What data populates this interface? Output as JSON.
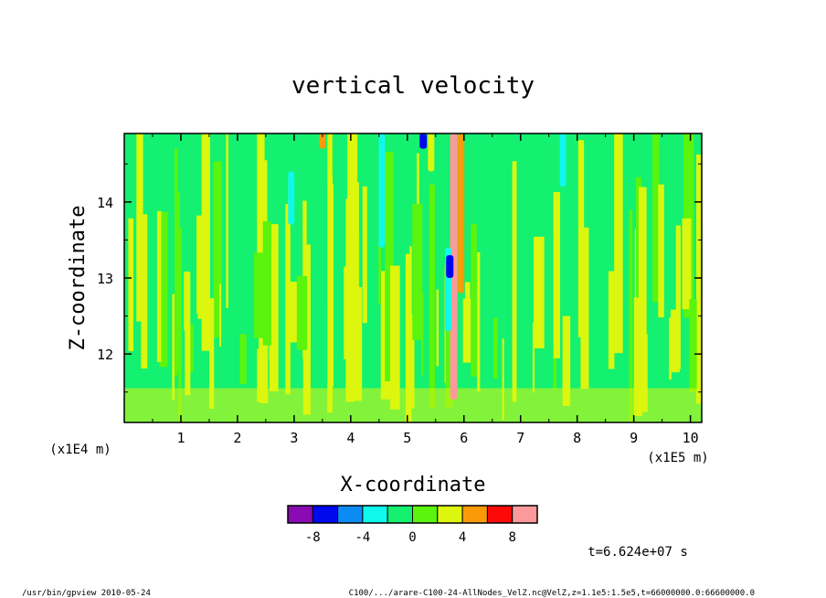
{
  "chart_data": {
    "type": "heatmap",
    "title": "vertical velocity",
    "xlabel": "X-coordinate",
    "ylabel": "Z-coordinate",
    "x_unit": "(x1E5 m)",
    "y_unit": "(x1E4 m)",
    "xlim": [
      0.0,
      10.2
    ],
    "ylim": [
      11.1,
      14.9
    ],
    "x_ticks": [
      "1",
      "2",
      "3",
      "4",
      "5",
      "6",
      "7",
      "8",
      "9",
      "10"
    ],
    "y_ticks": [
      "12",
      "13",
      "14"
    ],
    "colorbar": {
      "bounds": [
        -10,
        -8,
        -6,
        -4,
        -2,
        0,
        2,
        4,
        6,
        8,
        10
      ],
      "colors": [
        "#8a0ab3",
        "#0008ee",
        "#0b8cf2",
        "#10f8ec",
        "#14f070",
        "#5af40e",
        "#dcf60e",
        "#fa9a08",
        "#fc0a08",
        "#fb9a9a"
      ],
      "tick_labels": [
        "-8",
        "-4",
        "0",
        "4",
        "8"
      ],
      "tick_values": [
        -8,
        -4,
        0,
        4,
        8
      ]
    },
    "features": [
      {
        "x": 5.82,
        "zmin": 11.4,
        "zmax": 14.9,
        "value": 9
      },
      {
        "x": 5.95,
        "zmin": 12.8,
        "zmax": 14.9,
        "value": 5
      },
      {
        "x": 5.72,
        "zmin": 12.3,
        "zmax": 13.4,
        "value": -4
      },
      {
        "x": 5.75,
        "zmin": 13.0,
        "zmax": 13.3,
        "value": -7
      },
      {
        "x": 5.42,
        "zmin": 14.4,
        "zmax": 14.9,
        "value": 3
      },
      {
        "x": 5.28,
        "zmin": 14.7,
        "zmax": 14.9,
        "value": -8
      },
      {
        "x": 4.55,
        "zmin": 13.4,
        "zmax": 14.9,
        "value": -3
      },
      {
        "x": 2.95,
        "zmin": 13.7,
        "zmax": 14.4,
        "value": -3
      },
      {
        "x": 7.75,
        "zmin": 14.2,
        "zmax": 14.9,
        "value": -3
      },
      {
        "x": 3.5,
        "zmin": 14.7,
        "zmax": 14.9,
        "value": 4
      }
    ],
    "time_label": "t=6.624e+07 s"
  },
  "footer": {
    "left": "/usr/bin/gpview  2010-05-24",
    "right": "C100/.../arare-C100-24-AllNodes_VelZ.nc@VelZ,z=1.1e5:1.5e5,t=66000000.0:66600000.0"
  }
}
